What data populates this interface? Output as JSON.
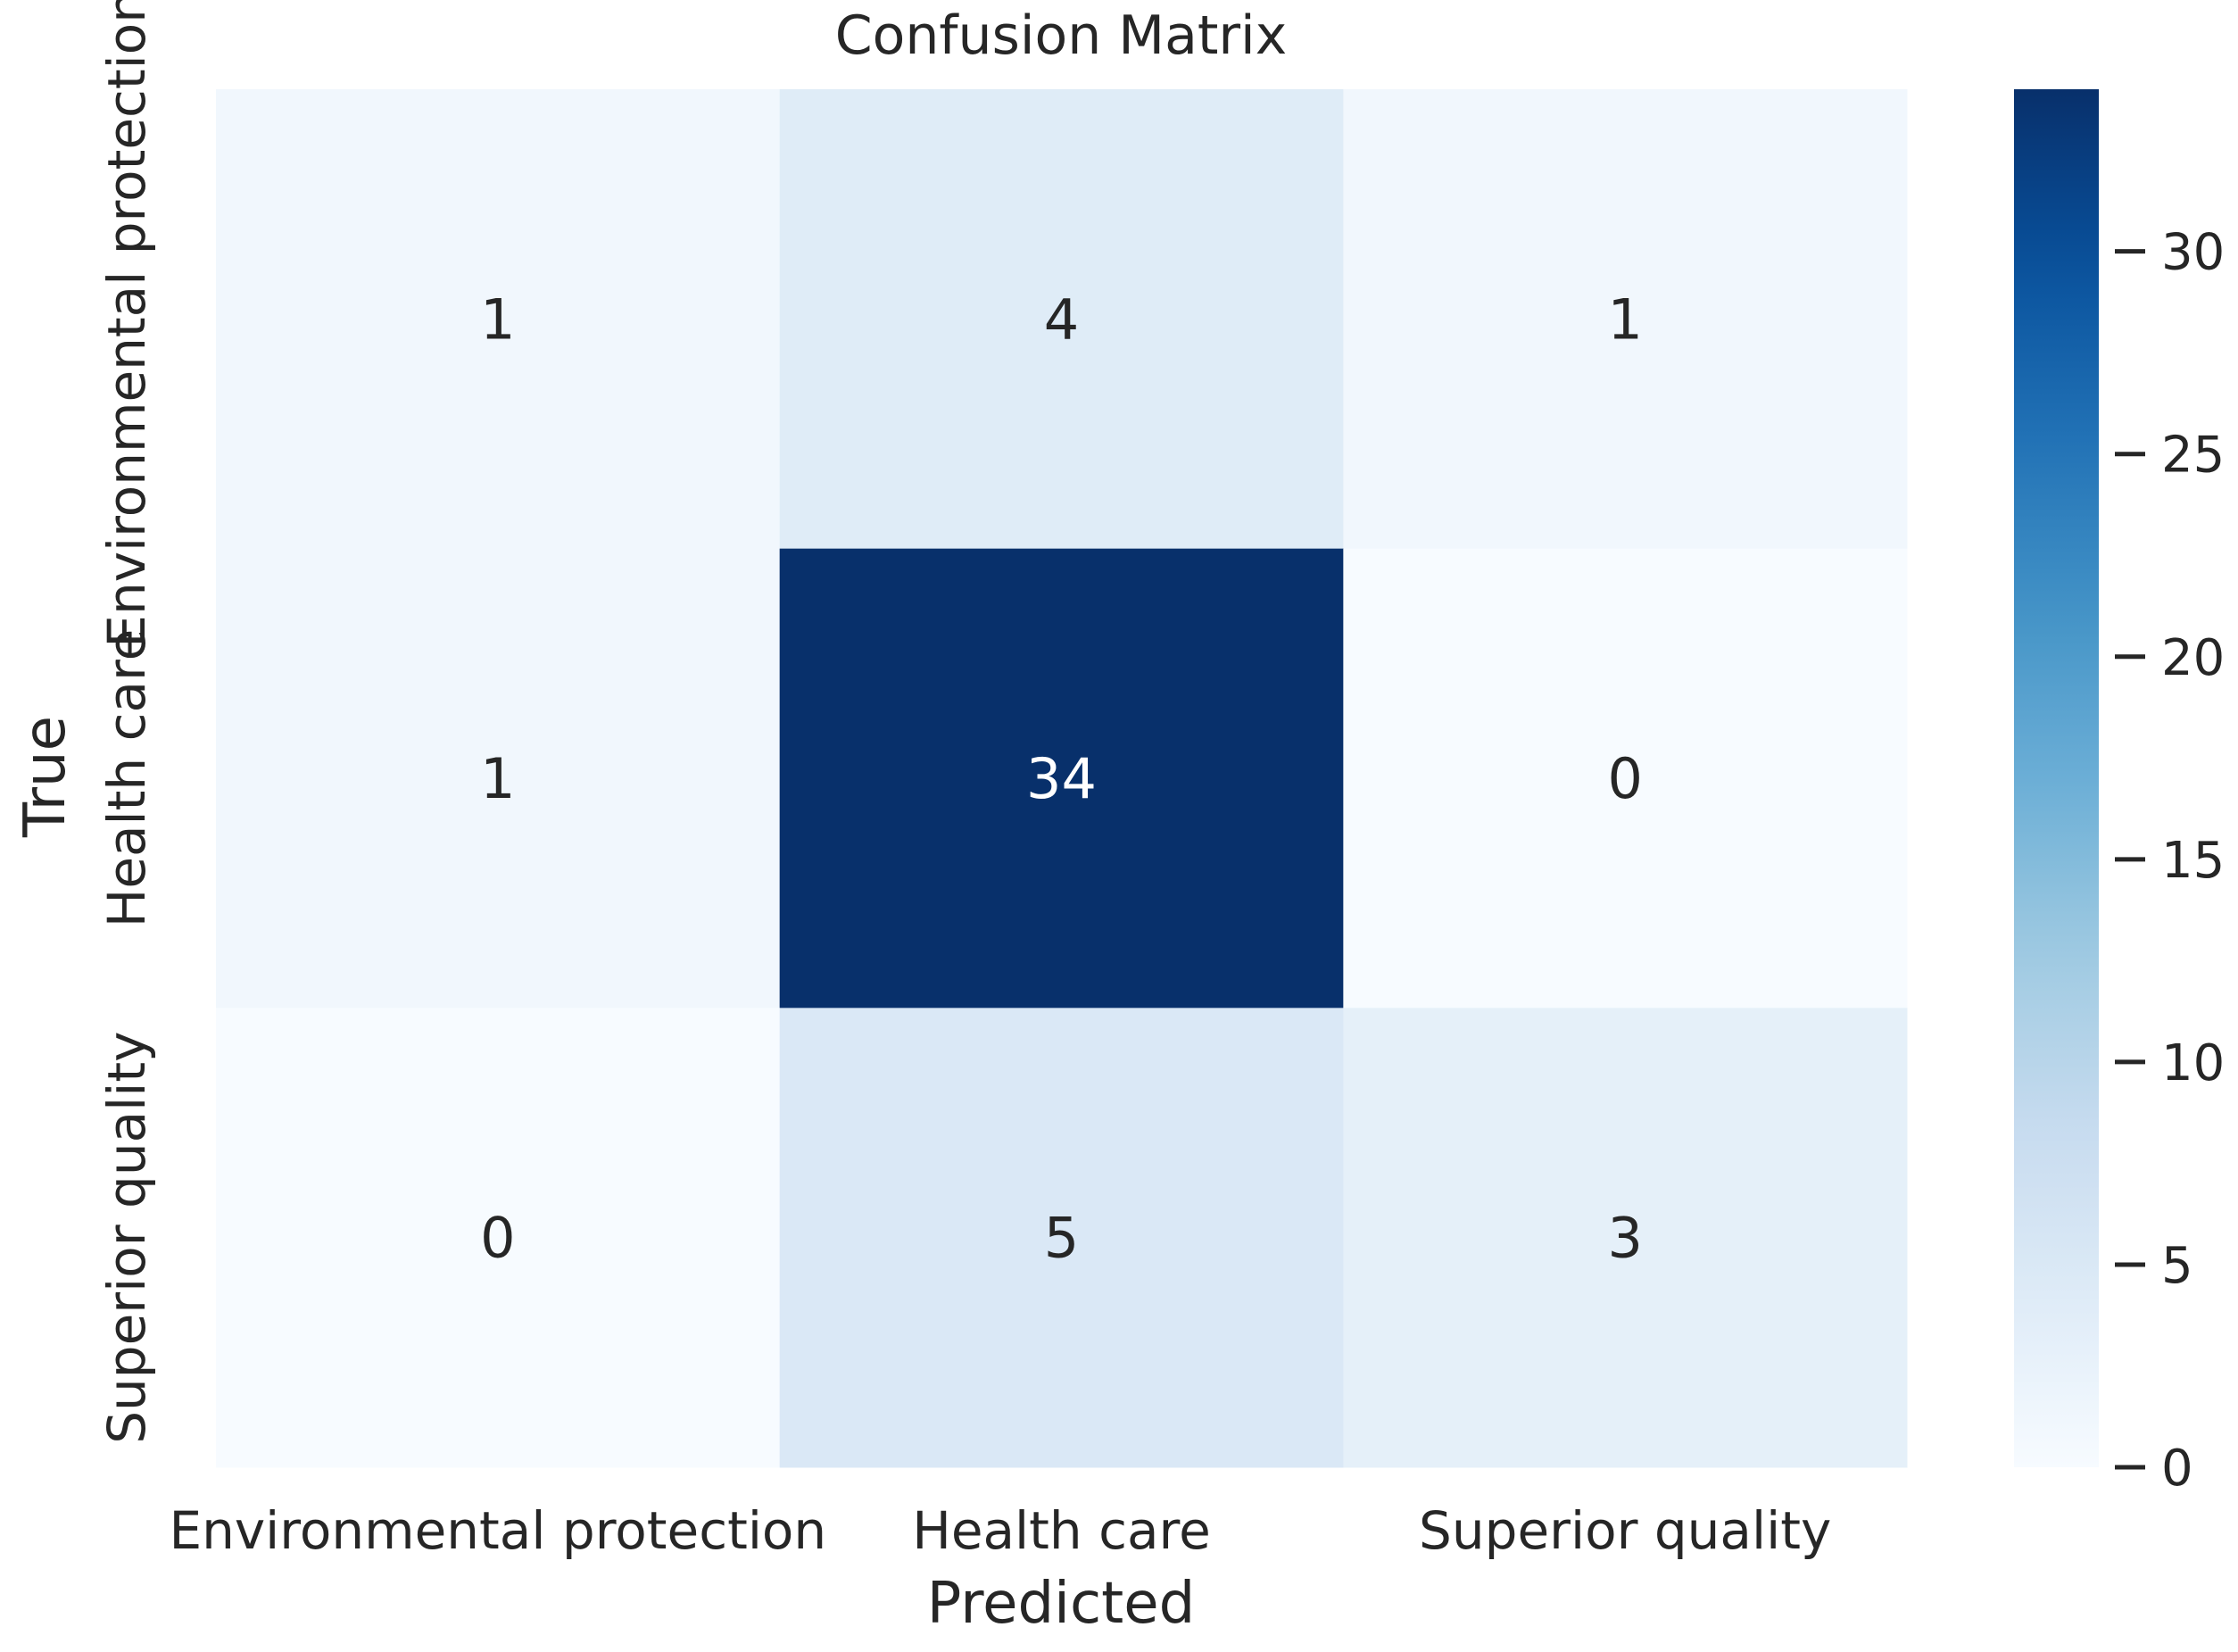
{
  "chart_data": {
    "type": "heatmap",
    "title": "Confusion Matrix",
    "xlabel": "Predicted",
    "ylabel": "True",
    "x_categories": [
      "Environmental protection",
      "Health care",
      "Superior quality"
    ],
    "y_categories": [
      "Environmental protection",
      "Health care",
      "Superior quality"
    ],
    "values": [
      [
        1,
        4,
        1
      ],
      [
        1,
        34,
        0
      ],
      [
        0,
        5,
        3
      ]
    ],
    "colormap": "Blues",
    "value_range": [
      0,
      34
    ],
    "colorbar_ticks": [
      0,
      5,
      10,
      15,
      20,
      25,
      30
    ],
    "colors": {
      "low": "#f7fbff",
      "high": "#08306b"
    },
    "grid": false
  }
}
